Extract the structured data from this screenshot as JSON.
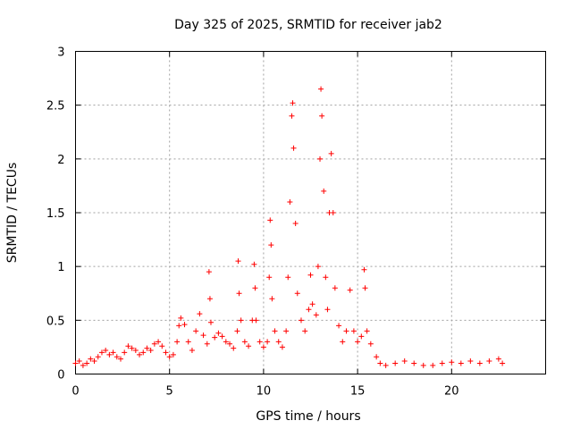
{
  "chart_data": {
    "type": "scatter",
    "title": "Day 325 of 2025, SRMTID for receiver jab2",
    "xlabel": "GPS time / hours",
    "ylabel": "SRMTID / TECUs",
    "xlim": [
      0,
      25
    ],
    "ylim": [
      0,
      3
    ],
    "xticks": [
      0,
      5,
      10,
      15,
      20
    ],
    "yticks": [
      0,
      0.5,
      1,
      1.5,
      2,
      2.5,
      3
    ],
    "ytick_labels": [
      "0",
      "0.5",
      "1",
      "1.5",
      "2",
      "2.5",
      "3"
    ],
    "grid": true,
    "marker": "+",
    "color": "#ff0000",
    "series": [
      {
        "name": "SRMTID",
        "points": [
          [
            0.0,
            0.1
          ],
          [
            0.2,
            0.12
          ],
          [
            0.4,
            0.08
          ],
          [
            0.6,
            0.1
          ],
          [
            0.8,
            0.14
          ],
          [
            1.0,
            0.12
          ],
          [
            1.2,
            0.16
          ],
          [
            1.4,
            0.2
          ],
          [
            1.6,
            0.22
          ],
          [
            1.8,
            0.18
          ],
          [
            2.0,
            0.2
          ],
          [
            2.2,
            0.16
          ],
          [
            2.4,
            0.14
          ],
          [
            2.6,
            0.2
          ],
          [
            2.8,
            0.26
          ],
          [
            3.0,
            0.24
          ],
          [
            3.2,
            0.22
          ],
          [
            3.4,
            0.18
          ],
          [
            3.6,
            0.2
          ],
          [
            3.8,
            0.24
          ],
          [
            4.0,
            0.22
          ],
          [
            4.2,
            0.28
          ],
          [
            4.4,
            0.3
          ],
          [
            4.6,
            0.26
          ],
          [
            4.8,
            0.2
          ],
          [
            5.0,
            0.16
          ],
          [
            5.2,
            0.18
          ],
          [
            5.4,
            0.3
          ],
          [
            5.5,
            0.45
          ],
          [
            5.6,
            0.52
          ],
          [
            5.8,
            0.46
          ],
          [
            6.0,
            0.3
          ],
          [
            6.2,
            0.22
          ],
          [
            6.4,
            0.4
          ],
          [
            6.6,
            0.56
          ],
          [
            6.8,
            0.36
          ],
          [
            7.0,
            0.28
          ],
          [
            7.1,
            0.95
          ],
          [
            7.15,
            0.7
          ],
          [
            7.2,
            0.48
          ],
          [
            7.4,
            0.34
          ],
          [
            7.6,
            0.38
          ],
          [
            7.8,
            0.35
          ],
          [
            8.0,
            0.3
          ],
          [
            8.2,
            0.28
          ],
          [
            8.4,
            0.24
          ],
          [
            8.6,
            0.4
          ],
          [
            8.65,
            1.05
          ],
          [
            8.7,
            0.75
          ],
          [
            8.8,
            0.5
          ],
          [
            9.0,
            0.3
          ],
          [
            9.2,
            0.26
          ],
          [
            9.4,
            0.5
          ],
          [
            9.5,
            1.02
          ],
          [
            9.55,
            0.8
          ],
          [
            9.6,
            0.5
          ],
          [
            9.8,
            0.3
          ],
          [
            10.0,
            0.25
          ],
          [
            10.2,
            0.3
          ],
          [
            10.3,
            0.9
          ],
          [
            10.35,
            1.43
          ],
          [
            10.4,
            1.2
          ],
          [
            10.45,
            0.7
          ],
          [
            10.6,
            0.4
          ],
          [
            10.8,
            0.3
          ],
          [
            11.0,
            0.25
          ],
          [
            11.2,
            0.4
          ],
          [
            11.3,
            0.9
          ],
          [
            11.4,
            1.6
          ],
          [
            11.5,
            2.4
          ],
          [
            11.55,
            2.52
          ],
          [
            11.6,
            2.1
          ],
          [
            11.7,
            1.4
          ],
          [
            11.8,
            0.75
          ],
          [
            12.0,
            0.5
          ],
          [
            12.2,
            0.4
          ],
          [
            12.4,
            0.6
          ],
          [
            12.5,
            0.92
          ],
          [
            12.6,
            0.65
          ],
          [
            12.8,
            0.55
          ],
          [
            12.9,
            1.0
          ],
          [
            13.0,
            2.0
          ],
          [
            13.05,
            2.65
          ],
          [
            13.1,
            2.4
          ],
          [
            13.2,
            1.7
          ],
          [
            13.3,
            0.9
          ],
          [
            13.4,
            0.6
          ],
          [
            13.5,
            1.5
          ],
          [
            13.6,
            2.05
          ],
          [
            13.7,
            1.5
          ],
          [
            13.8,
            0.8
          ],
          [
            14.0,
            0.45
          ],
          [
            14.2,
            0.3
          ],
          [
            14.4,
            0.4
          ],
          [
            14.6,
            0.78
          ],
          [
            14.8,
            0.4
          ],
          [
            15.0,
            0.3
          ],
          [
            15.2,
            0.35
          ],
          [
            15.35,
            0.97
          ],
          [
            15.4,
            0.8
          ],
          [
            15.5,
            0.4
          ],
          [
            15.7,
            0.28
          ],
          [
            16.0,
            0.16
          ],
          [
            16.2,
            0.1
          ],
          [
            16.5,
            0.08
          ],
          [
            17.0,
            0.1
          ],
          [
            17.5,
            0.12
          ],
          [
            18.0,
            0.1
          ],
          [
            18.5,
            0.08
          ],
          [
            19.0,
            0.08
          ],
          [
            19.5,
            0.1
          ],
          [
            20.0,
            0.11
          ],
          [
            20.5,
            0.1
          ],
          [
            21.0,
            0.12
          ],
          [
            21.5,
            0.1
          ],
          [
            22.0,
            0.12
          ],
          [
            22.5,
            0.14
          ],
          [
            22.7,
            0.1
          ]
        ]
      }
    ]
  }
}
